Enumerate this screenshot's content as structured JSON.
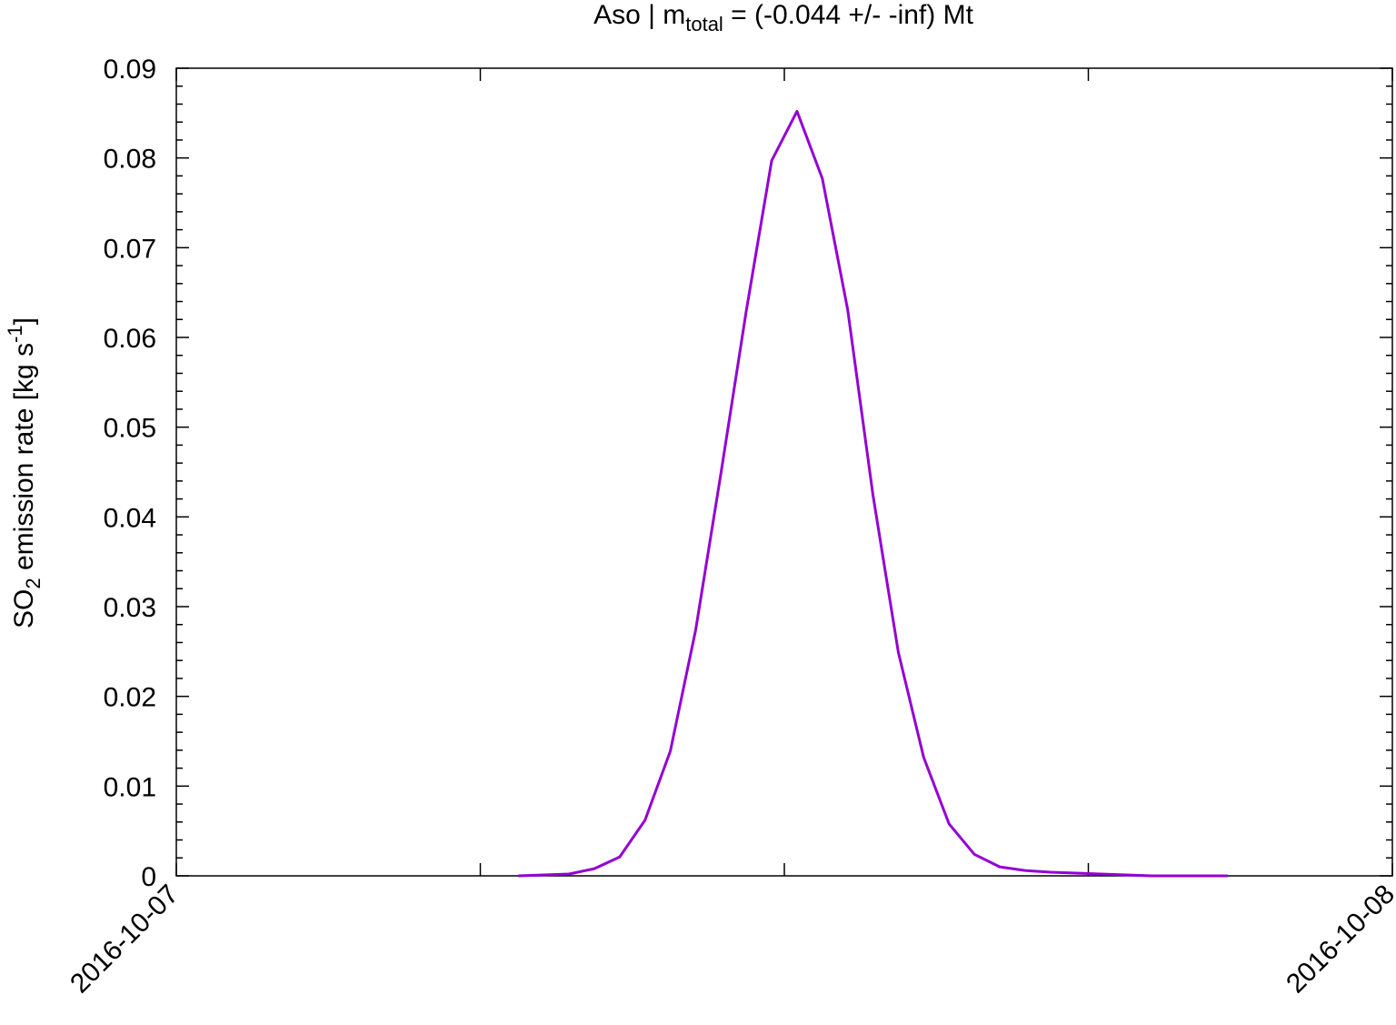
{
  "chart_data": {
    "type": "line",
    "title": {
      "text": "Aso | m",
      "subscript": "total",
      "rest": " = (-0.044 +/- -inf) Mt"
    },
    "ylabel": {
      "text": "SO",
      "subscript": "2",
      "rest": " emission rate [kg s",
      "superscript": "-1",
      "end": "]"
    },
    "x": [
      6.75,
      7.25,
      7.75,
      8.25,
      8.75,
      9.25,
      9.75,
      10.25,
      10.75,
      11.25,
      11.75,
      12.25,
      12.75,
      13.25,
      13.75,
      14.25,
      14.75,
      15.25,
      15.75,
      16.25,
      16.75,
      17.25,
      17.75,
      18.25,
      18.75,
      19.25,
      19.75,
      20.25,
      20.75
    ],
    "series": [
      {
        "color": "#9400d3",
        "values": [
          0,
          0.0001,
          0.0002,
          0.0008,
          0.0021,
          0.0062,
          0.0139,
          0.0274,
          0.0449,
          0.063,
          0.0797,
          0.0852,
          0.0777,
          0.0631,
          0.0424,
          0.0249,
          0.0132,
          0.0058,
          0.0024,
          0.001,
          0.0006,
          0.0004,
          0.0003,
          0.0002,
          0.0001,
          0,
          0,
          0,
          0
        ]
      }
    ],
    "xlim": [
      0,
      24
    ],
    "xticks": [
      {
        "value": 0,
        "label": "2016-10-07"
      },
      {
        "value": 24,
        "label": "2016-10-08"
      }
    ],
    "x_unlabeled_ticks": [
      6,
      12,
      18
    ],
    "ylim": [
      0,
      0.09
    ],
    "yticks": [
      0,
      0.01,
      0.02,
      0.03,
      0.04,
      0.05,
      0.06,
      0.07,
      0.08,
      0.09
    ],
    "grid": false
  }
}
